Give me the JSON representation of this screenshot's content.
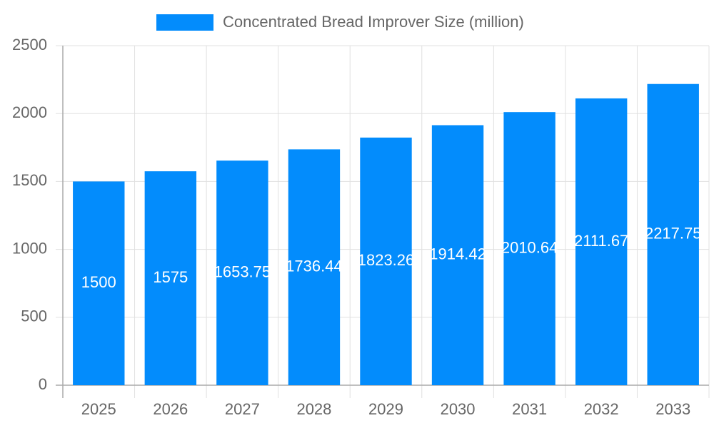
{
  "chart_data": {
    "type": "bar",
    "categories": [
      "2025",
      "2026",
      "2027",
      "2028",
      "2029",
      "2030",
      "2031",
      "2032",
      "2033"
    ],
    "series": [
      {
        "name": "Concentrated Bread Improver Size (million)",
        "color": "#038cfc",
        "values": [
          1500,
          1575,
          1653.75,
          1736.44,
          1823.26,
          1914.42,
          2010.64,
          2111.67,
          2217.75
        ]
      }
    ],
    "ylim": [
      0,
      2500
    ],
    "yticks": [
      0,
      500,
      1000,
      1500,
      2000,
      2500
    ],
    "grid": true,
    "legend": "top"
  }
}
